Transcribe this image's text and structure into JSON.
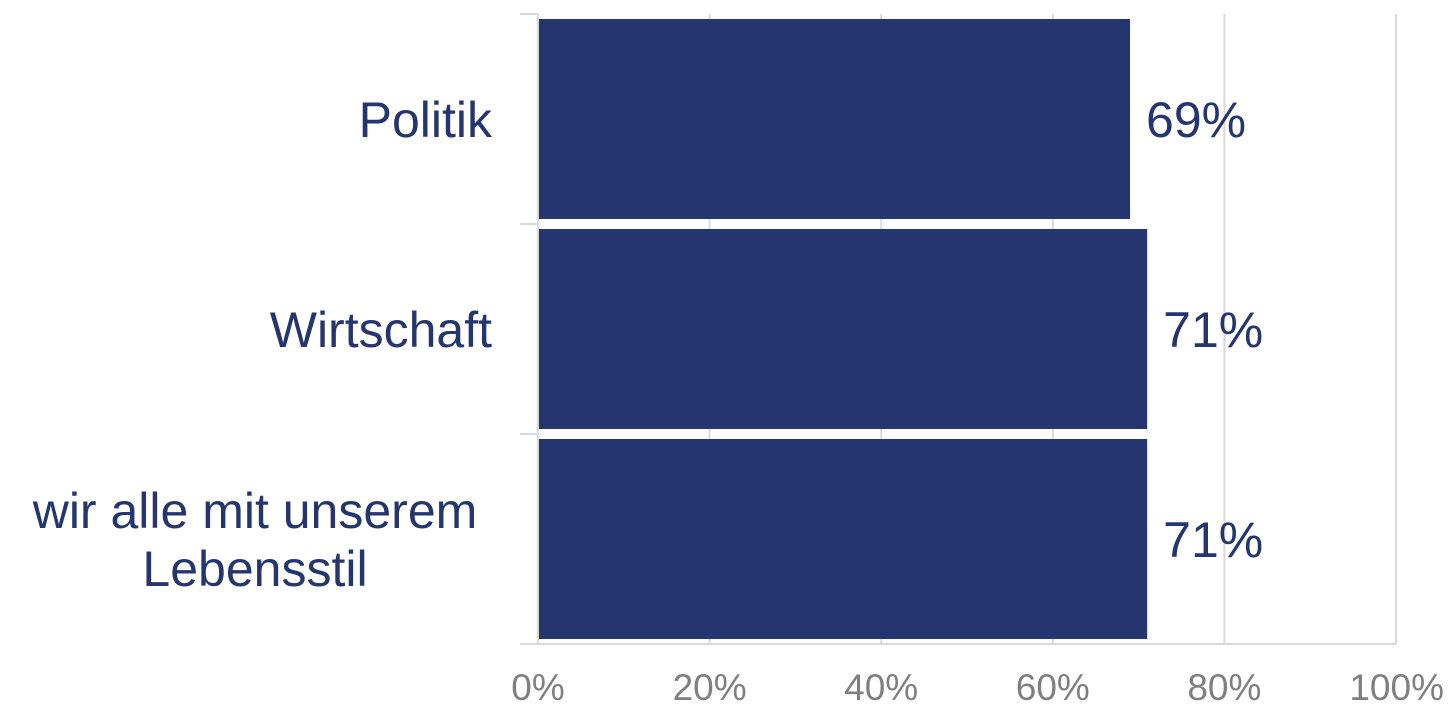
{
  "chart_data": {
    "type": "bar",
    "orientation": "horizontal",
    "categories": [
      [
        "Politik"
      ],
      [
        "Wirtschaft"
      ],
      [
        "wir alle mit unserem",
        "Lebensstil"
      ]
    ],
    "values": [
      69,
      71,
      71
    ],
    "value_labels": [
      "69%",
      "71%",
      "71%"
    ],
    "xlim": [
      0,
      100
    ],
    "xticks": [
      0,
      20,
      40,
      60,
      80,
      100
    ],
    "xtick_labels": [
      "0%",
      "20%",
      "40%",
      "60%",
      "80%",
      "100%"
    ],
    "grid": true,
    "legend": "none",
    "colors": {
      "bar": "#24356f",
      "label": "#24356f",
      "tick": "#7f7f7f",
      "grid": "#d9d9d9"
    }
  }
}
